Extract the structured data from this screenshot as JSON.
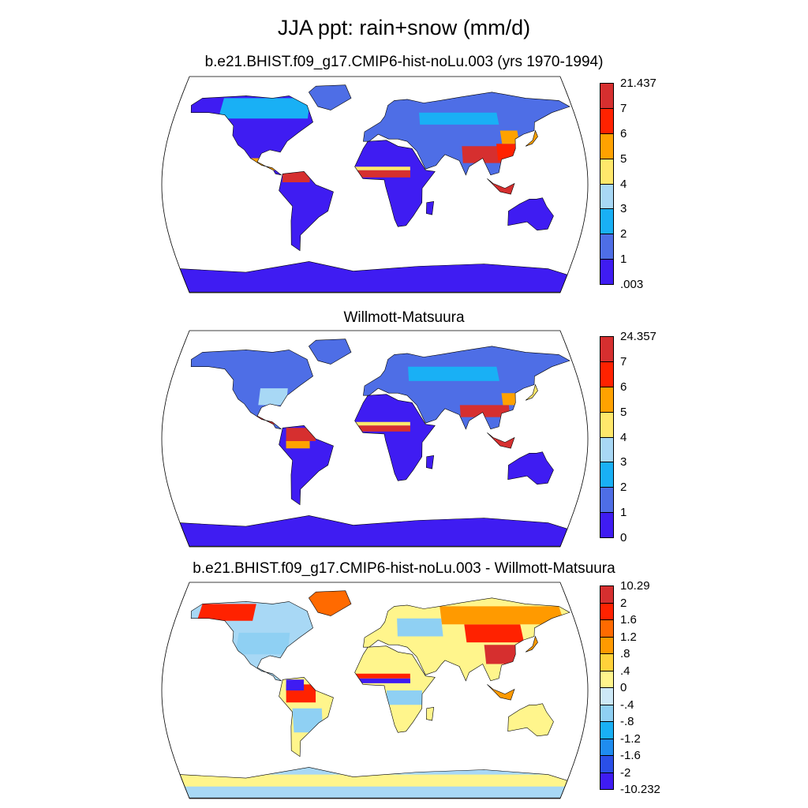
{
  "title": "JJA ppt: rain+snow (mm/d)",
  "panels": [
    {
      "id": "model",
      "title": "b.e21.BHIST.f09_g17.CMIP6-hist-noLu.003 (yrs 1970-1994)",
      "colorbar": {
        "labels": [
          "21.437",
          "7",
          "6",
          "5",
          "4",
          "3",
          "2",
          "1",
          ".003"
        ],
        "colors": [
          "#d62f2f",
          "#ff2200",
          "#ffa200",
          "#ffe86b",
          "#a8d8f5",
          "#19b0f5",
          "#4e6ee6",
          "#3f1cf2"
        ]
      }
    },
    {
      "id": "obs",
      "title": "Willmott-Matsuura",
      "colorbar": {
        "labels": [
          "24.357",
          "7",
          "6",
          "5",
          "4",
          "3",
          "2",
          "1",
          "0"
        ],
        "colors": [
          "#d62f2f",
          "#ff2200",
          "#ffa200",
          "#ffe86b",
          "#a8d8f5",
          "#19b0f5",
          "#4e6ee6",
          "#3f1cf2"
        ]
      }
    },
    {
      "id": "diff",
      "title": "b.e21.BHIST.f09_g17.CMIP6-hist-noLu.003 - Willmott-Matsuura",
      "colorbar": {
        "labels": [
          "10.29",
          "2",
          "1.6",
          "1.2",
          ".8",
          ".4",
          "0",
          "-.4",
          "-.8",
          "-1.2",
          "-1.6",
          "-2",
          "-10.232"
        ],
        "colors": [
          "#d62f2f",
          "#ff2200",
          "#ff6a00",
          "#ff9a00",
          "#ffd23a",
          "#fff58c",
          "#cde9f7",
          "#8fd0f3",
          "#19b0f5",
          "#1f8cf0",
          "#2a4fe8",
          "#3f1cf2"
        ]
      }
    }
  ]
}
